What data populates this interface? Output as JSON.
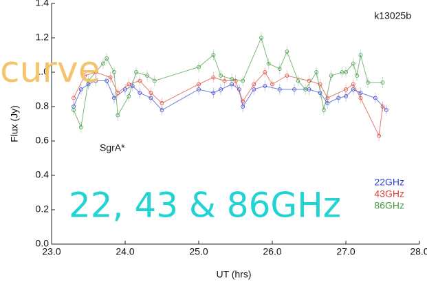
{
  "chart_data": {
    "type": "line",
    "xlabel": "UT (hrs)",
    "ylabel": "Flux (Jy)",
    "annotations": [
      "k13025b",
      "SgrA*"
    ],
    "overlay_text": [
      "curve",
      "22, 43 & 86GHz"
    ],
    "xlim": [
      23,
      28
    ],
    "ylim": [
      0,
      1.4
    ],
    "xticks": [
      {
        "value": 23,
        "label": "23.0"
      },
      {
        "value": 24,
        "label": "24.0"
      },
      {
        "value": 25,
        "label": "25.0"
      },
      {
        "value": 26,
        "label": "26.0"
      },
      {
        "value": 27,
        "label": "27.0"
      },
      {
        "value": 28,
        "label": "28.0"
      }
    ],
    "yticks": [
      {
        "value": 0,
        "label": "0.0"
      },
      0.2,
      0.4,
      0.6,
      0.8,
      {
        "value": 1,
        "label": "1.0"
      },
      1.2,
      1.4
    ],
    "series": [
      {
        "name": "22GHz",
        "color": "#3344cc",
        "x": [
          23.3,
          23.4,
          23.5,
          23.6,
          23.75,
          23.85,
          24.0,
          24.1,
          24.2,
          24.35,
          24.5,
          25.0,
          25.2,
          25.3,
          25.45,
          25.55,
          25.6,
          25.75,
          25.9,
          26.1,
          26.3,
          26.5,
          26.65,
          26.75,
          26.9,
          27.0,
          27.1,
          27.2,
          27.4,
          27.55
        ],
        "values": [
          0.8,
          0.9,
          0.93,
          0.95,
          0.95,
          0.85,
          0.9,
          0.92,
          0.88,
          0.85,
          0.78,
          0.9,
          0.88,
          0.9,
          0.93,
          0.9,
          0.8,
          0.9,
          0.92,
          0.9,
          0.9,
          0.9,
          0.88,
          0.82,
          0.85,
          0.86,
          0.9,
          0.88,
          0.85,
          0.78
        ]
      },
      {
        "name": "43GHz",
        "color": "#dd4433",
        "x": [
          23.3,
          23.45,
          23.6,
          23.8,
          23.9,
          24.05,
          24.2,
          24.35,
          24.5,
          25.0,
          25.2,
          25.35,
          25.5,
          25.6,
          25.75,
          25.9,
          26.0,
          26.2,
          26.5,
          26.65,
          26.75,
          27.0,
          27.1,
          27.2,
          27.45,
          27.5
        ],
        "values": [
          0.85,
          0.98,
          1.0,
          0.97,
          0.88,
          0.93,
          0.95,
          0.88,
          0.82,
          0.93,
          0.97,
          0.95,
          0.95,
          0.83,
          0.93,
          1.0,
          0.93,
          0.98,
          0.95,
          0.93,
          0.85,
          0.9,
          0.93,
          0.85,
          0.63,
          0.8
        ]
      },
      {
        "name": "86GHz",
        "color": "#449944",
        "x": [
          23.3,
          23.4,
          23.5,
          23.7,
          23.75,
          23.85,
          23.9,
          24.05,
          24.15,
          24.3,
          24.4,
          25.0,
          25.2,
          25.3,
          25.45,
          25.6,
          25.85,
          25.95,
          26.1,
          26.2,
          26.35,
          26.45,
          26.6,
          26.7,
          26.8,
          26.95,
          27.0,
          27.1,
          27.15,
          27.2,
          27.3,
          27.5
        ],
        "values": [
          0.78,
          0.68,
          0.95,
          1.05,
          1.08,
          1.0,
          0.75,
          0.86,
          1.0,
          0.98,
          0.95,
          1.03,
          1.1,
          0.98,
          0.96,
          0.95,
          1.2,
          1.05,
          1.02,
          1.12,
          0.95,
          0.9,
          1.0,
          0.78,
          0.98,
          1.0,
          1.0,
          1.05,
          0.98,
          1.1,
          0.94,
          0.94
        ]
      }
    ]
  }
}
